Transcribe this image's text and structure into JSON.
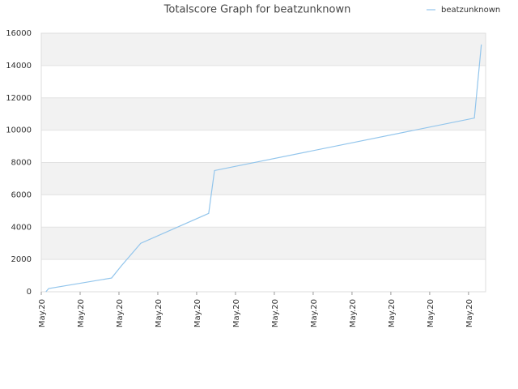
{
  "chart_data": {
    "type": "line",
    "title": "Totalscore Graph for beatzunknown",
    "x": [
      0.12,
      0.19,
      1.81,
      2.06,
      2.56,
      4.31,
      4.46,
      11.15,
      11.33
    ],
    "series": [
      {
        "name": "beatzunknown",
        "color": "#92c5ec",
        "values": [
          0,
          200,
          850,
          1600,
          3000,
          4850,
          7500,
          10750,
          15300
        ]
      }
    ],
    "xlim": [
      0,
      11.44
    ],
    "xticks": [
      {
        "value": 0,
        "label": "May.20"
      },
      {
        "value": 1,
        "label": "May.20"
      },
      {
        "value": 2,
        "label": "May.20"
      },
      {
        "value": 3,
        "label": "May.20"
      },
      {
        "value": 4,
        "label": "May.20"
      },
      {
        "value": 5,
        "label": "May.20"
      },
      {
        "value": 6,
        "label": "May.20"
      },
      {
        "value": 7,
        "label": "May.20"
      },
      {
        "value": 8,
        "label": "May.20"
      },
      {
        "value": 9,
        "label": "May.20"
      },
      {
        "value": 10,
        "label": "May.20"
      },
      {
        "value": 11,
        "label": "May.20"
      }
    ],
    "ylim": [
      0,
      16000
    ],
    "yticks": [
      0,
      2000,
      4000,
      6000,
      8000,
      10000,
      12000,
      14000,
      16000
    ],
    "grid": true,
    "legend": "top-right"
  }
}
